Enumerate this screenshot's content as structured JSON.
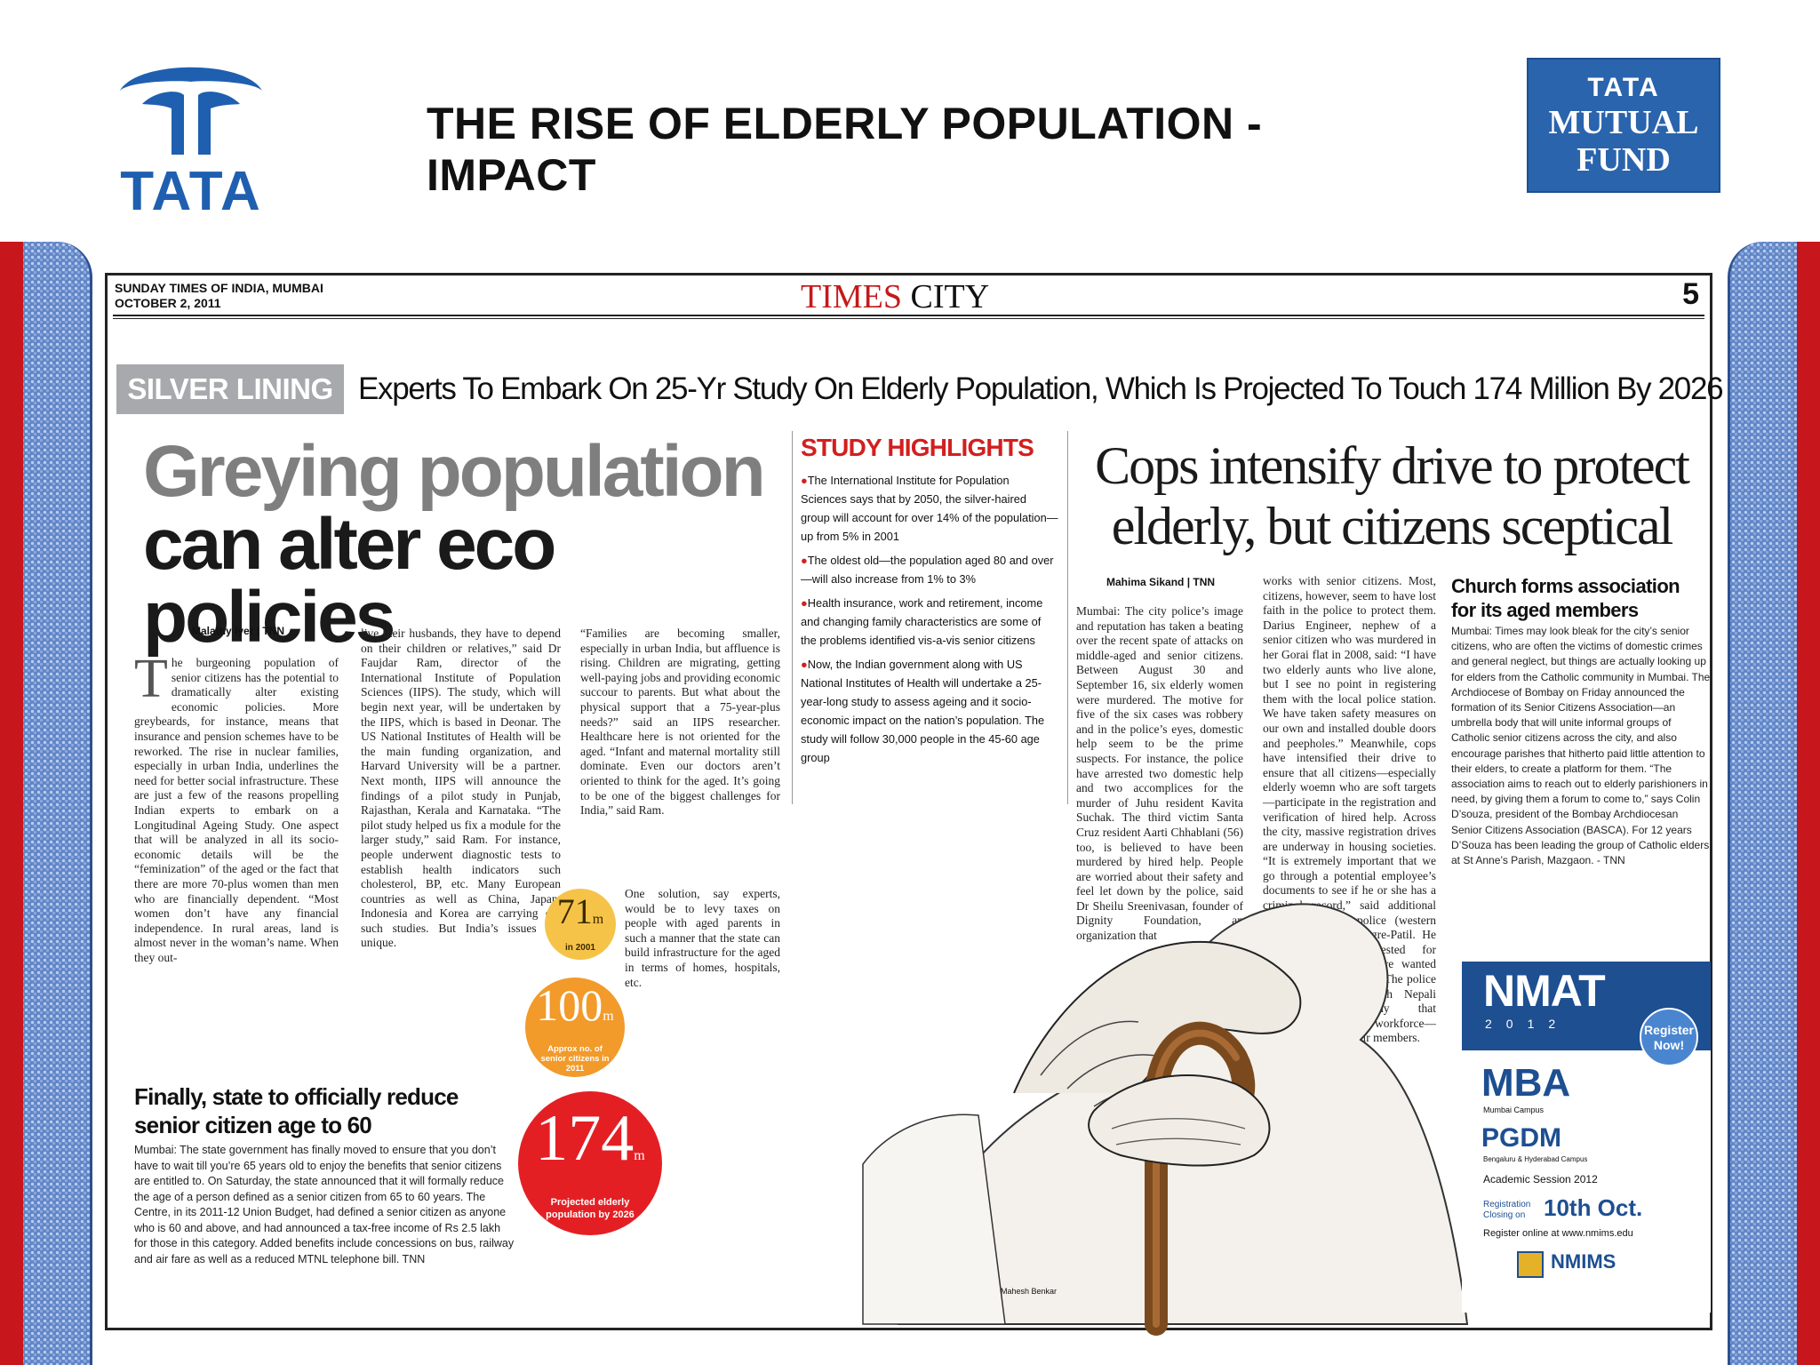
{
  "slide": {
    "title": "THE RISE OF ELDERLY POPULATION - IMPACT",
    "left_logo_text": "TATA",
    "right_logo": {
      "line1": "TATA",
      "line2": "MUTUAL",
      "line3": "FUND"
    },
    "colors": {
      "tata_blue": "#1f5fb0",
      "mutual_fund_blue": "#2a64ad",
      "strip_red": "#c8161d",
      "strip_blue": "#5f84c5"
    }
  },
  "newspaper": {
    "edition": "SUNDAY TIMES OF INDIA, MUMBAI",
    "date": "OCTOBER 2, 2011",
    "section_times": "TIMES",
    "section_city": "CITY",
    "page_number": "5",
    "silver_lining": "SILVER LINING",
    "kicker": "Experts To Embark On 25-Yr Study On Elderly Population, Which Is Projected To Touch 174 Million By 2026",
    "main_story": {
      "headline_line1": "Greying population",
      "headline_line2": "can alter eco policies",
      "byline": "Malathy Iyer | TNN",
      "dropcap": "T",
      "col1": "he burgeoning population of senior citizens has the potential to dramatically alter existing economic policies. More greybeards, for instance, means that insurance and pension schemes have to be reworked. The rise in nuclear families, especially in urban India, underlines the need for better social infrastructure. These are just a few of the reasons propelling Indian experts to embark on a Longitudinal Ageing Study. One aspect that will be analyzed in all its socio-economic details will be the “feminization” of the aged or the fact that there are more 70-plus women than men who are financially dependent. “Most women don’t have any financial independence. In rural areas, land is almost never in the woman’s name. When they out-",
      "col2": "live their husbands, they have to depend on their children or relatives,” said Dr Faujdar Ram, director of the International Institute of Population Sciences (IIPS). The study, which will begin next year, will be undertaken by the IIPS, which is based in Deonar. The US National Institutes of Health will be the main funding organization, and Harvard University will be a partner. Next month, IIPS will announce the findings of a pilot study in Punjab, Rajasthan, Kerala and Karnataka. “The pilot study helped us fix a module for the larger study,” said Ram. For instance, people underwent diagnostic tests to establish health indicators such cholesterol, BP, etc. Many European countries as well as China, Japan, Indonesia and Korea are carrying out such studies. But India’s issues are unique.",
      "col3": "“Families are becoming smaller, especially in urban India, but affluence is rising. Children are migrating, getting well-paying jobs and providing economic succour to parents. But what about the physical support that a 75-year-plus needs?” said an IIPS researcher. Healthcare here is not oriented for the aged. “Infant and maternal mortality still dominate. Even our doctors aren’t oriented to think for the aged. It’s going to be one of the biggest challenges for India,” said Ram.",
      "col3b": "One solution, say experts, would be to levy taxes on people with aged parents in such a manner that the state can build infrastructure for the aged in terms of homes, hospitals, etc."
    },
    "sub_story": {
      "headline": "Finally, state to officially reduce senior citizen age to 60",
      "body": "Mumbai: The state government has finally moved to ensure that you don’t have to wait till you’re 65 years old to enjoy the benefits that senior citizens are entitled to. On Saturday, the state announced that it will formally reduce the age of a person defined as a senior citizen from 65 to 60 years. The Centre, in its 2011-12 Union Budget, had defined a senior citizen as anyone who is 60 and above, and had announced a tax-free income of Rs 2.5 lakh for those in this category. Added benefits include concessions on bus, railway and air fare as well as a reduced MTNL telephone bill. TNN"
    },
    "stats": {
      "s1_number": "71",
      "s1_unit": "m",
      "s1_label": "in 2001",
      "s2_number": "100",
      "s2_unit": "m",
      "s2_label": "Approx no. of senior citizens in 2011",
      "s3_number": "174",
      "s3_unit": "m",
      "s3_label": "Projected elderly population by 2026"
    },
    "study_highlights": {
      "title": "STUDY HIGHLIGHTS",
      "items": [
        "The International Institute for Population Sciences says that by 2050, the silver-haired group will account for over 14% of the population—up from 5% in 2001",
        "The oldest old—the population aged 80 and over—will also increase from 1% to 3%",
        "Health insurance, work and retirement, income and changing family characteristics are some of the problems identified vis-a-vis senior citizens",
        "Now, the Indian government along with US National Institutes of Health will undertake a 25-year-long study to assess ageing and it socio-economic impact on the nation’s population. The study will follow 30,000 people in the 45-60 age group"
      ]
    },
    "cops_story": {
      "headline": "Cops intensify drive to protect elderly, but citizens sceptical",
      "byline": "Mahima Sikand | TNN",
      "col1": "Mumbai: The city police’s image and reputation has taken a beating over the recent spate of attacks on middle-aged and senior citizens. Between August 30 and September 16, six elderly women were murdered. The motive for five of the six cases was robbery and in the police’s eyes, domestic help seem to be the prime suspects. For instance, the police have arrested two domestic help and two accomplices for the murder of Juhu resident Kavita Suchak. The third victim Santa Cruz resident Aarti Chhablani (56) too, is believed to have been murdered by hired help. People are worried about their safety and feel let down by the police, said Dr Sheilu Sreenivasan, founder of Dignity Foundation, an organization that",
      "col2": "works with senior citizens. Most, citizens, however, seem to have lost faith in the police to protect them. Darius Engineer, nephew of a senior citizen who was murdered in her Gorai flat in 2008, said: “I have two elderly aunts who live alone, but I see no point in registering them with the local police station. We have taken safety measures on our own and installed double doors and peepholes.” Meanwhile, cops have intensified their drive to ensure that all citizens—especially elderly woemn who are soft targets—participate in the registration and verification of hired help. Across the city, massive registration drives are underway in housing societies. “It is extremely important that we go through a potential employee’s documents to see if he or she has a criminal record,” said additional commissioner of police (western region) Vishwas Nangre-Patil. He said the men arrested for Chhablani’s murder were wanted for a murder in Gujarat. The police are also working with Nepali Association—a body that represents the Nepali workforce—to collect data on their members."
    },
    "church_story": {
      "headline": "Church forms association for its aged members",
      "body": "Mumbai: Times may look bleak for the city’s senior citizens, who are often the victims of domestic crimes and general neglect, but things are actually looking up for elders from the Catholic community in Mumbai. The Archdiocese of Bombay on Friday announced the formation of its Senior Citizens Association—an umbrella body that will unite informal groups of Catholic senior citizens across the city, and also encourage parishes that hitherto paid little attention to their elders, to create a platform for them. “The association aims to reach out to elderly parishioners in need, by giving them a forum to come to,” says Colin D’souza, president of the Bombay Archdiocesan Senior Citizens Association (BASCA). For 12 years D’Souza has been leading the group of Catholic elders at St Anne’s Parish, Mazgaon. - TNN"
    },
    "illustration_credit": "Mahesh Benkar",
    "ad": {
      "nmat": "NMAT",
      "year": "2012",
      "register": "Register Now!",
      "mba": "MBA",
      "mba_sub": "Mumbai Campus",
      "pgdm": "PGDM",
      "pgdm_sub": "Bengaluru & Hyderabad Campus",
      "session": "Academic Session 2012",
      "reg_label": "Registration Closing on",
      "date": "10th Oct.",
      "online": "Register online at www.nmims.edu",
      "brand": "NMIMS"
    }
  }
}
